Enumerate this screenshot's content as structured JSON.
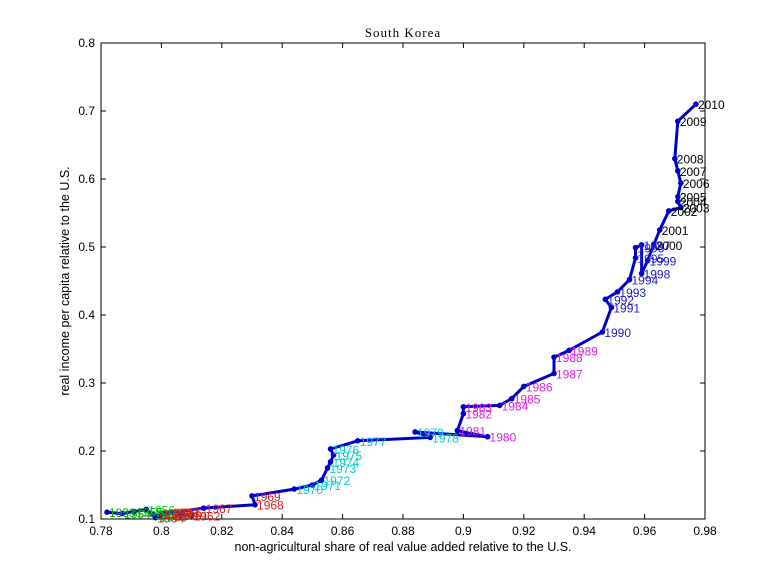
{
  "chart_data": {
    "type": "line",
    "title": "South Korea",
    "xlabel": "non-agricultural share of real value added relative to the U.S.",
    "ylabel": "real income per capita relative to the U.S.",
    "xlim": [
      0.78,
      0.98
    ],
    "ylim": [
      0.1,
      0.8
    ],
    "xticks": [
      "0.78",
      "0.8",
      "0.82",
      "0.84",
      "0.86",
      "0.88",
      "0.9",
      "0.92",
      "0.94",
      "0.96",
      "0.98"
    ],
    "yticks": [
      "0.1",
      "0.2",
      "0.3",
      "0.4",
      "0.5",
      "0.6",
      "0.7",
      "0.8"
    ],
    "grid": false,
    "line_color": "#0000cc",
    "points": [
      {
        "year": "1953",
        "x": 0.782,
        "y": 0.11,
        "color": "#00aa00"
      },
      {
        "year": "1954",
        "x": 0.787,
        "y": 0.108,
        "color": "#00aa00"
      },
      {
        "year": "1955",
        "x": 0.791,
        "y": 0.111,
        "color": "#00aa00"
      },
      {
        "year": "1956",
        "x": 0.795,
        "y": 0.114,
        "color": "#00dd00"
      },
      {
        "year": "1957",
        "x": 0.797,
        "y": 0.107,
        "color": "#00aa00"
      },
      {
        "year": "1958",
        "x": 0.799,
        "y": 0.104,
        "color": "#00aa00"
      },
      {
        "year": "1959",
        "x": 0.801,
        "y": 0.109,
        "color": "#00aa00"
      },
      {
        "year": "1960",
        "x": 0.803,
        "y": 0.11,
        "color": "#e0e000"
      },
      {
        "year": "1961",
        "x": 0.806,
        "y": 0.106,
        "color": "#d62020"
      },
      {
        "year": "1962",
        "x": 0.81,
        "y": 0.105,
        "color": "#d62020"
      },
      {
        "year": "1963",
        "x": 0.803,
        "y": 0.11,
        "color": "#d62020"
      },
      {
        "year": "1964",
        "x": 0.798,
        "y": 0.102,
        "color": "#d62020"
      },
      {
        "year": "1965",
        "x": 0.8,
        "y": 0.108,
        "color": "#d62020"
      },
      {
        "year": "1966",
        "x": 0.804,
        "y": 0.11,
        "color": "#d62020"
      },
      {
        "year": "1967",
        "x": 0.814,
        "y": 0.116,
        "color": "#d62020"
      },
      {
        "year": "1968",
        "x": 0.831,
        "y": 0.121,
        "color": "#d62020"
      },
      {
        "year": "1969",
        "x": 0.83,
        "y": 0.134,
        "color": "#d62020"
      },
      {
        "year": "1970",
        "x": 0.844,
        "y": 0.144,
        "color": "#00cccc"
      },
      {
        "year": "1971",
        "x": 0.85,
        "y": 0.15,
        "color": "#00cccc"
      },
      {
        "year": "1972",
        "x": 0.853,
        "y": 0.157,
        "color": "#00cccc"
      },
      {
        "year": "1973",
        "x": 0.855,
        "y": 0.175,
        "color": "#00cccc"
      },
      {
        "year": "1974",
        "x": 0.856,
        "y": 0.184,
        "color": "#00cccc"
      },
      {
        "year": "1975",
        "x": 0.857,
        "y": 0.194,
        "color": "#00cccc"
      },
      {
        "year": "1976",
        "x": 0.856,
        "y": 0.203,
        "color": "#00cccc"
      },
      {
        "year": "1977",
        "x": 0.865,
        "y": 0.215,
        "color": "#00cccc"
      },
      {
        "year": "1978",
        "x": 0.889,
        "y": 0.22,
        "color": "#00cccc"
      },
      {
        "year": "1979",
        "x": 0.884,
        "y": 0.228,
        "color": "#00cccc"
      },
      {
        "year": "1980",
        "x": 0.908,
        "y": 0.221,
        "color": "#e020e0"
      },
      {
        "year": "1981",
        "x": 0.898,
        "y": 0.23,
        "color": "#e020e0"
      },
      {
        "year": "1982",
        "x": 0.9,
        "y": 0.255,
        "color": "#e020e0"
      },
      {
        "year": "1983",
        "x": 0.9,
        "y": 0.265,
        "color": "#e020e0"
      },
      {
        "year": "1984",
        "x": 0.912,
        "y": 0.267,
        "color": "#e020e0"
      },
      {
        "year": "1985",
        "x": 0.916,
        "y": 0.277,
        "color": "#e020e0"
      },
      {
        "year": "1986",
        "x": 0.92,
        "y": 0.295,
        "color": "#e020e0"
      },
      {
        "year": "1987",
        "x": 0.93,
        "y": 0.314,
        "color": "#e020e0"
      },
      {
        "year": "1988",
        "x": 0.93,
        "y": 0.338,
        "color": "#e020e0"
      },
      {
        "year": "1989",
        "x": 0.935,
        "y": 0.348,
        "color": "#e020e0"
      },
      {
        "year": "1990",
        "x": 0.946,
        "y": 0.375,
        "color": "#2222cc"
      },
      {
        "year": "1991",
        "x": 0.949,
        "y": 0.411,
        "color": "#2222cc"
      },
      {
        "year": "1992",
        "x": 0.947,
        "y": 0.423,
        "color": "#2222cc"
      },
      {
        "year": "1993",
        "x": 0.951,
        "y": 0.434,
        "color": "#2222cc"
      },
      {
        "year": "1994",
        "x": 0.955,
        "y": 0.452,
        "color": "#2222cc"
      },
      {
        "year": "1995",
        "x": 0.957,
        "y": 0.484,
        "color": "#2222cc"
      },
      {
        "year": "1996",
        "x": 0.957,
        "y": 0.499,
        "color": "#2222cc"
      },
      {
        "year": "1997",
        "x": 0.959,
        "y": 0.503,
        "color": "#2222cc"
      },
      {
        "year": "1998",
        "x": 0.959,
        "y": 0.461,
        "color": "#2222cc"
      },
      {
        "year": "1999",
        "x": 0.961,
        "y": 0.48,
        "color": "#2222cc"
      },
      {
        "year": "2000",
        "x": 0.963,
        "y": 0.503,
        "color": "#000000"
      },
      {
        "year": "2001",
        "x": 0.965,
        "y": 0.525,
        "color": "#000000"
      },
      {
        "year": "2002",
        "x": 0.968,
        "y": 0.553,
        "color": "#000000"
      },
      {
        "year": "2003",
        "x": 0.972,
        "y": 0.558,
        "color": "#000000"
      },
      {
        "year": "2004",
        "x": 0.971,
        "y": 0.567,
        "color": "#000000"
      },
      {
        "year": "2005",
        "x": 0.971,
        "y": 0.574,
        "color": "#000000"
      },
      {
        "year": "2006",
        "x": 0.972,
        "y": 0.594,
        "color": "#000000"
      },
      {
        "year": "2007",
        "x": 0.971,
        "y": 0.612,
        "color": "#000000"
      },
      {
        "year": "2008",
        "x": 0.97,
        "y": 0.63,
        "color": "#000000"
      },
      {
        "year": "2009",
        "x": 0.971,
        "y": 0.685,
        "color": "#000000"
      },
      {
        "year": "2010",
        "x": 0.977,
        "y": 0.71,
        "color": "#000000"
      }
    ]
  }
}
